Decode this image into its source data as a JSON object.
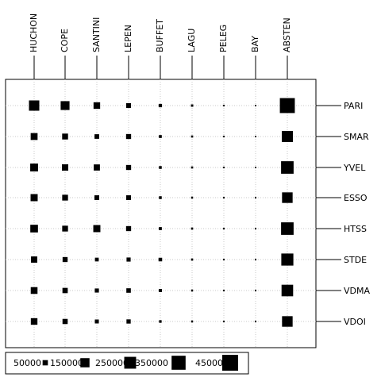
{
  "chart_data": {
    "type": "bubble-matrix",
    "columns": [
      "HUCHON",
      "COPE",
      "SANTINI",
      "LEPEN",
      "BUFFET",
      "LAGU",
      "PELEG",
      "BAY",
      "ABSTEN"
    ],
    "rows": [
      "PARI",
      "SMAR",
      "YVEL",
      "ESSO",
      "HTSS",
      "STDE",
      "VDMA",
      "VDOI"
    ],
    "values": [
      [
        190000,
        140000,
        78000,
        42000,
        20000,
        10000,
        5000,
        1500,
        400000
      ],
      [
        85000,
        62000,
        38000,
        45000,
        15000,
        8000,
        5000,
        1500,
        220000
      ],
      [
        110000,
        72000,
        68000,
        45000,
        14000,
        8000,
        5000,
        1500,
        280000
      ],
      [
        90000,
        60000,
        40000,
        40000,
        14000,
        7000,
        4000,
        1200,
        200000
      ],
      [
        105000,
        60000,
        90000,
        45000,
        16000,
        8000,
        5000,
        1200,
        280000
      ],
      [
        70000,
        45000,
        25000,
        30000,
        23000,
        8000,
        4000,
        1200,
        260000
      ],
      [
        82000,
        50000,
        30000,
        36000,
        18000,
        7000,
        4000,
        1200,
        240000
      ],
      [
        78000,
        48000,
        28000,
        32000,
        12000,
        7000,
        4000,
        1200,
        200000
      ]
    ],
    "legend": {
      "values": [
        50000,
        150000,
        250000,
        350000,
        450000
      ],
      "labels": [
        "50000",
        "150000",
        "250000",
        "350000",
        "450000"
      ],
      "position": "bottom-left"
    },
    "grid": true,
    "column_labels_position": "top",
    "row_labels_position": "right"
  },
  "colors": {
    "marker": "#000000",
    "grid": "#c8c8c8",
    "frame": "#000000",
    "background": "#ffffff"
  }
}
